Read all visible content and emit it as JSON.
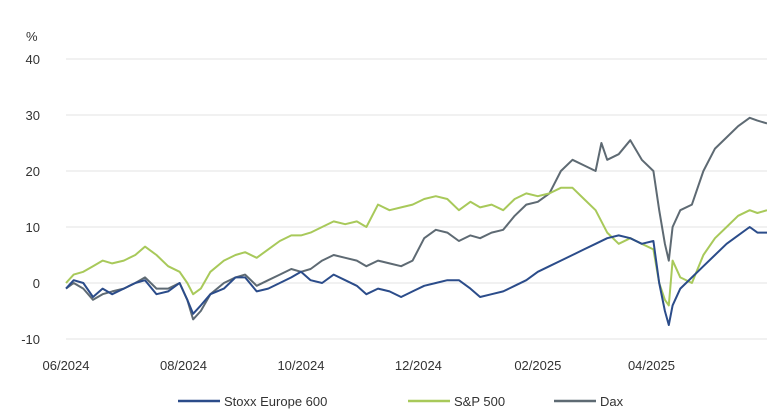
{
  "chart_data": {
    "type": "line",
    "unit_label": "%",
    "x_ticks": [
      "06/2024",
      "08/2024",
      "10/2024",
      "12/2024",
      "02/2025",
      "04/2025"
    ],
    "xlim": [
      "2024-06-01",
      "2025-05-31"
    ],
    "ylim": [
      -10,
      40
    ],
    "y_ticks": [
      "40",
      "30",
      "20",
      "10",
      "0",
      "-10"
    ],
    "y_tick_values": [
      40,
      30,
      20,
      10,
      0,
      -10
    ],
    "grid": "horizontal",
    "legend_position": "bottom",
    "series": [
      {
        "name": "Stoxx Europe 600",
        "color": "#2b4c8a",
        "points": [
          [
            "2024-06-01",
            -1
          ],
          [
            "2024-06-05",
            0.5
          ],
          [
            "2024-06-10",
            0
          ],
          [
            "2024-06-15",
            -2.5
          ],
          [
            "2024-06-20",
            -1
          ],
          [
            "2024-06-25",
            -2
          ],
          [
            "2024-07-01",
            -1
          ],
          [
            "2024-07-07",
            0
          ],
          [
            "2024-07-12",
            0.5
          ],
          [
            "2024-07-18",
            -2
          ],
          [
            "2024-07-24",
            -1.5
          ],
          [
            "2024-07-30",
            0
          ],
          [
            "2024-08-03",
            -3
          ],
          [
            "2024-08-06",
            -5.5
          ],
          [
            "2024-08-10",
            -4
          ],
          [
            "2024-08-15",
            -2
          ],
          [
            "2024-08-22",
            -1
          ],
          [
            "2024-08-28",
            1
          ],
          [
            "2024-09-02",
            1
          ],
          [
            "2024-09-08",
            -1.5
          ],
          [
            "2024-09-14",
            -1
          ],
          [
            "2024-09-20",
            0
          ],
          [
            "2024-09-26",
            1
          ],
          [
            "2024-10-01",
            2
          ],
          [
            "2024-10-06",
            0.5
          ],
          [
            "2024-10-12",
            0
          ],
          [
            "2024-10-18",
            1.5
          ],
          [
            "2024-10-24",
            0.5
          ],
          [
            "2024-10-30",
            -0.5
          ],
          [
            "2024-11-04",
            -2
          ],
          [
            "2024-11-10",
            -1
          ],
          [
            "2024-11-16",
            -1.5
          ],
          [
            "2024-11-22",
            -2.5
          ],
          [
            "2024-11-28",
            -1.5
          ],
          [
            "2024-12-04",
            -0.5
          ],
          [
            "2024-12-10",
            0
          ],
          [
            "2024-12-16",
            0.5
          ],
          [
            "2024-12-22",
            0.5
          ],
          [
            "2024-12-28",
            -1
          ],
          [
            "2025-01-02",
            -2.5
          ],
          [
            "2025-01-08",
            -2
          ],
          [
            "2025-01-14",
            -1.5
          ],
          [
            "2025-01-20",
            -0.5
          ],
          [
            "2025-01-26",
            0.5
          ],
          [
            "2025-02-01",
            2
          ],
          [
            "2025-02-07",
            3
          ],
          [
            "2025-02-13",
            4
          ],
          [
            "2025-02-19",
            5
          ],
          [
            "2025-02-25",
            6
          ],
          [
            "2025-03-03",
            7
          ],
          [
            "2025-03-09",
            8
          ],
          [
            "2025-03-15",
            8.5
          ],
          [
            "2025-03-21",
            8
          ],
          [
            "2025-03-27",
            7
          ],
          [
            "2025-04-02",
            7.5
          ],
          [
            "2025-04-05",
            0
          ],
          [
            "2025-04-08",
            -5
          ],
          [
            "2025-04-10",
            -7.5
          ],
          [
            "2025-04-12",
            -4
          ],
          [
            "2025-04-16",
            -1
          ],
          [
            "2025-04-22",
            1
          ],
          [
            "2025-04-28",
            3
          ],
          [
            "2025-05-04",
            5
          ],
          [
            "2025-05-10",
            7
          ],
          [
            "2025-05-16",
            8.5
          ],
          [
            "2025-05-22",
            10
          ],
          [
            "2025-05-26",
            9
          ],
          [
            "2025-05-31",
            9
          ]
        ]
      },
      {
        "name": "S&P 500",
        "color": "#a8c95a",
        "points": [
          [
            "2024-06-01",
            0
          ],
          [
            "2024-06-05",
            1.5
          ],
          [
            "2024-06-10",
            2
          ],
          [
            "2024-06-15",
            3
          ],
          [
            "2024-06-20",
            4
          ],
          [
            "2024-06-25",
            3.5
          ],
          [
            "2024-07-01",
            4
          ],
          [
            "2024-07-07",
            5
          ],
          [
            "2024-07-12",
            6.5
          ],
          [
            "2024-07-18",
            5
          ],
          [
            "2024-07-24",
            3
          ],
          [
            "2024-07-30",
            2
          ],
          [
            "2024-08-03",
            0
          ],
          [
            "2024-08-06",
            -2
          ],
          [
            "2024-08-10",
            -1
          ],
          [
            "2024-08-15",
            2
          ],
          [
            "2024-08-22",
            4
          ],
          [
            "2024-08-28",
            5
          ],
          [
            "2024-09-02",
            5.5
          ],
          [
            "2024-09-08",
            4.5
          ],
          [
            "2024-09-14",
            6
          ],
          [
            "2024-09-20",
            7.5
          ],
          [
            "2024-09-26",
            8.5
          ],
          [
            "2024-10-01",
            8.5
          ],
          [
            "2024-10-06",
            9
          ],
          [
            "2024-10-12",
            10
          ],
          [
            "2024-10-18",
            11
          ],
          [
            "2024-10-24",
            10.5
          ],
          [
            "2024-10-30",
            11
          ],
          [
            "2024-11-04",
            10
          ],
          [
            "2024-11-10",
            14
          ],
          [
            "2024-11-16",
            13
          ],
          [
            "2024-11-22",
            13.5
          ],
          [
            "2024-11-28",
            14
          ],
          [
            "2024-12-04",
            15
          ],
          [
            "2024-12-10",
            15.5
          ],
          [
            "2024-12-16",
            15
          ],
          [
            "2024-12-22",
            13
          ],
          [
            "2024-12-28",
            14.5
          ],
          [
            "2025-01-02",
            13.5
          ],
          [
            "2025-01-08",
            14
          ],
          [
            "2025-01-14",
            13
          ],
          [
            "2025-01-20",
            15
          ],
          [
            "2025-01-26",
            16
          ],
          [
            "2025-02-01",
            15.5
          ],
          [
            "2025-02-07",
            16
          ],
          [
            "2025-02-13",
            17
          ],
          [
            "2025-02-19",
            17
          ],
          [
            "2025-02-25",
            15
          ],
          [
            "2025-03-03",
            13
          ],
          [
            "2025-03-09",
            9
          ],
          [
            "2025-03-15",
            7
          ],
          [
            "2025-03-21",
            8
          ],
          [
            "2025-03-27",
            7
          ],
          [
            "2025-04-02",
            6
          ],
          [
            "2025-04-05",
            0
          ],
          [
            "2025-04-08",
            -3
          ],
          [
            "2025-04-10",
            -4
          ],
          [
            "2025-04-12",
            4
          ],
          [
            "2025-04-16",
            1
          ],
          [
            "2025-04-22",
            0
          ],
          [
            "2025-04-28",
            5
          ],
          [
            "2025-05-04",
            8
          ],
          [
            "2025-05-10",
            10
          ],
          [
            "2025-05-16",
            12
          ],
          [
            "2025-05-22",
            13
          ],
          [
            "2025-05-26",
            12.5
          ],
          [
            "2025-05-31",
            13
          ]
        ]
      },
      {
        "name": "Dax",
        "color": "#5e6a73",
        "points": [
          [
            "2024-06-01",
            -1
          ],
          [
            "2024-06-05",
            0
          ],
          [
            "2024-06-10",
            -1
          ],
          [
            "2024-06-15",
            -3
          ],
          [
            "2024-06-20",
            -2
          ],
          [
            "2024-06-25",
            -1.5
          ],
          [
            "2024-07-01",
            -1
          ],
          [
            "2024-07-07",
            0
          ],
          [
            "2024-07-12",
            1
          ],
          [
            "2024-07-18",
            -1
          ],
          [
            "2024-07-24",
            -1
          ],
          [
            "2024-07-30",
            0
          ],
          [
            "2024-08-03",
            -3
          ],
          [
            "2024-08-06",
            -6.5
          ],
          [
            "2024-08-10",
            -5
          ],
          [
            "2024-08-15",
            -2
          ],
          [
            "2024-08-22",
            0
          ],
          [
            "2024-08-28",
            1
          ],
          [
            "2024-09-02",
            1.5
          ],
          [
            "2024-09-08",
            -0.5
          ],
          [
            "2024-09-14",
            0.5
          ],
          [
            "2024-09-20",
            1.5
          ],
          [
            "2024-09-26",
            2.5
          ],
          [
            "2024-10-01",
            2
          ],
          [
            "2024-10-06",
            2.5
          ],
          [
            "2024-10-12",
            4
          ],
          [
            "2024-10-18",
            5
          ],
          [
            "2024-10-24",
            4.5
          ],
          [
            "2024-10-30",
            4
          ],
          [
            "2024-11-04",
            3
          ],
          [
            "2024-11-10",
            4
          ],
          [
            "2024-11-16",
            3.5
          ],
          [
            "2024-11-22",
            3
          ],
          [
            "2024-11-28",
            4
          ],
          [
            "2024-12-04",
            8
          ],
          [
            "2024-12-10",
            9.5
          ],
          [
            "2024-12-16",
            9
          ],
          [
            "2024-12-22",
            7.5
          ],
          [
            "2024-12-28",
            8.5
          ],
          [
            "2025-01-02",
            8
          ],
          [
            "2025-01-08",
            9
          ],
          [
            "2025-01-14",
            9.5
          ],
          [
            "2025-01-20",
            12
          ],
          [
            "2025-01-26",
            14
          ],
          [
            "2025-02-01",
            14.5
          ],
          [
            "2025-02-07",
            16
          ],
          [
            "2025-02-13",
            20
          ],
          [
            "2025-02-19",
            22
          ],
          [
            "2025-02-25",
            21
          ],
          [
            "2025-03-03",
            20
          ],
          [
            "2025-03-06",
            25
          ],
          [
            "2025-03-09",
            22
          ],
          [
            "2025-03-15",
            23
          ],
          [
            "2025-03-21",
            25.5
          ],
          [
            "2025-03-27",
            22
          ],
          [
            "2025-04-02",
            20
          ],
          [
            "2025-04-05",
            13
          ],
          [
            "2025-04-08",
            7
          ],
          [
            "2025-04-10",
            4
          ],
          [
            "2025-04-12",
            10
          ],
          [
            "2025-04-16",
            13
          ],
          [
            "2025-04-22",
            14
          ],
          [
            "2025-04-28",
            20
          ],
          [
            "2025-05-04",
            24
          ],
          [
            "2025-05-10",
            26
          ],
          [
            "2025-05-16",
            28
          ],
          [
            "2025-05-22",
            29.5
          ],
          [
            "2025-05-26",
            29
          ],
          [
            "2025-05-31",
            28.5
          ]
        ]
      }
    ]
  }
}
